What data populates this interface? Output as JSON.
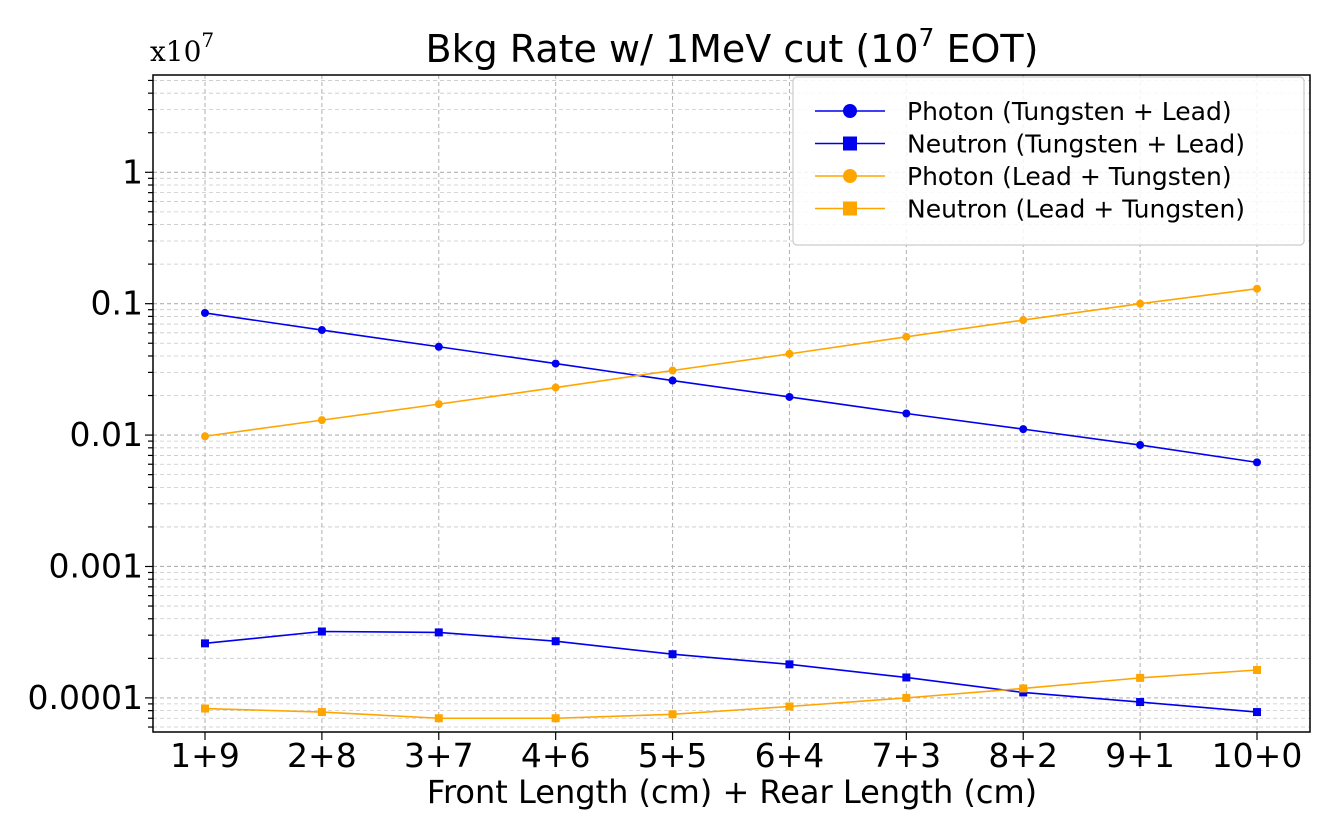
{
  "chart_data": {
    "type": "line",
    "title": "Bkg Rate w/ 1MeV cut (10",
    "title_exp": "7",
    "title_suffix": " EOT)",
    "scale_base": "x10",
    "scale_exp": "7",
    "xlabel": "Front Length (cm) + Rear Length (cm)",
    "ylabel": "",
    "yscale": "log",
    "ylim": [
      5.5e-05,
      5.5
    ],
    "grid": true,
    "legend_position": "top-right",
    "categories": [
      "1+9",
      "2+8",
      "3+7",
      "4+6",
      "5+5",
      "6+4",
      "7+3",
      "8+2",
      "9+1",
      "10+0"
    ],
    "ytick_labels": [
      "0.0001",
      "0.001",
      "0.01",
      "0.1",
      "1"
    ],
    "ytick_values": [
      0.0001,
      0.001,
      0.01,
      0.1,
      1
    ],
    "series": [
      {
        "name": "Photon (Tungsten + Lead)",
        "color": "#0000ee",
        "marker": "circle",
        "values": [
          0.085,
          0.063,
          0.047,
          0.035,
          0.026,
          0.0195,
          0.0146,
          0.0111,
          0.0084,
          0.0062
        ]
      },
      {
        "name": "Neutron (Tungsten + Lead)",
        "color": "#0000ee",
        "marker": "square",
        "values": [
          0.00026,
          0.00032,
          0.000315,
          0.00027,
          0.000215,
          0.00018,
          0.000143,
          0.00011,
          9.3e-05,
          7.8e-05
        ]
      },
      {
        "name": "Photon (Lead + Tungsten)",
        "color": "#ffa500",
        "marker": "circle",
        "values": [
          0.0098,
          0.013,
          0.0172,
          0.023,
          0.031,
          0.0415,
          0.056,
          0.075,
          0.1,
          0.13
        ]
      },
      {
        "name": "Neutron (Lead + Tungsten)",
        "color": "#ffa500",
        "marker": "square",
        "values": [
          8.3e-05,
          7.8e-05,
          7e-05,
          7e-05,
          7.5e-05,
          8.6e-05,
          0.0001,
          0.000118,
          0.000142,
          0.000163
        ]
      }
    ]
  }
}
